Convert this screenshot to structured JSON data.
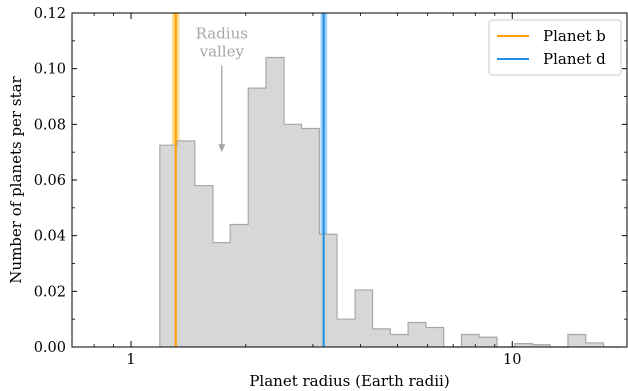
{
  "chart_data": {
    "type": "bar",
    "xlabel": "Planet radius (Earth radii)",
    "ylabel": "Number of planets per star",
    "xscale": "log",
    "xlim": [
      0.7,
      20
    ],
    "ylim": [
      0,
      0.12
    ],
    "x_ticks": [
      {
        "value": 1,
        "label": "1"
      },
      {
        "value": 10,
        "label": "10"
      }
    ],
    "y_ticks": [
      {
        "value": 0.0,
        "label": "0.00"
      },
      {
        "value": 0.02,
        "label": "0.02"
      },
      {
        "value": 0.04,
        "label": "0.04"
      },
      {
        "value": 0.06,
        "label": "0.06"
      },
      {
        "value": 0.08,
        "label": "0.08"
      },
      {
        "value": 0.1,
        "label": "0.10"
      },
      {
        "value": 0.12,
        "label": "0.12"
      }
    ],
    "histogram": {
      "color": "#d3d3d3",
      "edge_color": "#a8a8a8",
      "bins": [
        {
          "x0": 1.19,
          "x1": 1.32,
          "value": 0.0725
        },
        {
          "x0": 1.32,
          "x1": 1.47,
          "value": 0.074
        },
        {
          "x0": 1.47,
          "x1": 1.64,
          "value": 0.058
        },
        {
          "x0": 1.64,
          "x1": 1.82,
          "value": 0.0375
        },
        {
          "x0": 1.82,
          "x1": 2.03,
          "value": 0.044
        },
        {
          "x0": 2.03,
          "x1": 2.26,
          "value": 0.093
        },
        {
          "x0": 2.26,
          "x1": 2.52,
          "value": 0.104
        },
        {
          "x0": 2.52,
          "x1": 2.8,
          "value": 0.08
        },
        {
          "x0": 2.8,
          "x1": 3.12,
          "value": 0.0785
        },
        {
          "x0": 3.12,
          "x1": 3.47,
          "value": 0.0405
        },
        {
          "x0": 3.47,
          "x1": 3.87,
          "value": 0.01
        },
        {
          "x0": 3.87,
          "x1": 4.3,
          "value": 0.0205
        },
        {
          "x0": 4.3,
          "x1": 4.79,
          "value": 0.0065
        },
        {
          "x0": 4.79,
          "x1": 5.33,
          "value": 0.0045
        },
        {
          "x0": 5.33,
          "x1": 5.94,
          "value": 0.0088
        },
        {
          "x0": 5.94,
          "x1": 6.61,
          "value": 0.007
        },
        {
          "x0": 6.61,
          "x1": 7.36,
          "value": 0.0
        },
        {
          "x0": 7.36,
          "x1": 8.19,
          "value": 0.0045
        },
        {
          "x0": 8.19,
          "x1": 9.12,
          "value": 0.0035
        },
        {
          "x0": 9.12,
          "x1": 10.15,
          "value": 0.0
        },
        {
          "x0": 10.15,
          "x1": 11.3,
          "value": 0.0012
        },
        {
          "x0": 11.3,
          "x1": 12.58,
          "value": 0.0008
        },
        {
          "x0": 12.58,
          "x1": 14.0,
          "value": 0.0
        },
        {
          "x0": 14.0,
          "x1": 15.59,
          "value": 0.0045
        },
        {
          "x0": 15.59,
          "x1": 17.35,
          "value": 0.0015
        },
        {
          "x0": 17.35,
          "x1": 19.32,
          "value": 0.0
        }
      ]
    },
    "series": [
      {
        "name": "Planet b",
        "x": 1.31,
        "x_low": 1.28,
        "x_high": 1.34,
        "color": "#ff9f00",
        "band_color": "#ffd27a"
      },
      {
        "name": "Planet d",
        "x": 3.2,
        "x_low": 3.14,
        "x_high": 3.27,
        "color": "#1f8fe5",
        "band_color": "#8ec8f5"
      }
    ],
    "legend": {
      "position": "top-right"
    },
    "annotations": [
      {
        "text_lines": [
          "Radius",
          "valley"
        ],
        "x": 1.73,
        "y": 0.112,
        "arrow_to": {
          "x": 1.73,
          "y": 0.07
        },
        "color": "#a6a6a6"
      }
    ],
    "grid": false
  }
}
